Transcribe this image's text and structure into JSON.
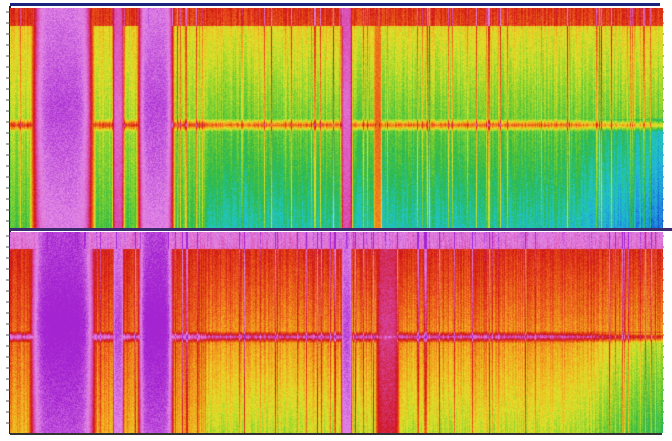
{
  "colors": {
    "frame": "#1a237e",
    "divider": "#3b2a6e",
    "background": "#ffffff"
  },
  "icons": {
    "channel_1": "spectrogram",
    "channel_2": "spectrogram"
  },
  "palette": [
    "#1433c8",
    "#1f8fe0",
    "#21c7c9",
    "#2bb84a",
    "#7fd12e",
    "#e3e12a",
    "#f2a21d",
    "#e8501a",
    "#cf1414",
    "#d94ab0",
    "#e48be6",
    "#a424d1"
  ],
  "channels": [
    {
      "id": "ch1",
      "base_level": 0.38,
      "horizontal_band_at": 0.53,
      "bursts": [
        {
          "start": 0.025,
          "end": 0.135,
          "level": 0.95
        },
        {
          "start": 0.155,
          "end": 0.175,
          "level": 0.85
        },
        {
          "start": 0.19,
          "end": 0.255,
          "level": 0.95
        },
        {
          "start": 0.505,
          "end": 0.525,
          "level": 0.85
        },
        {
          "start": 0.555,
          "end": 0.57,
          "level": 0.6
        }
      ]
    },
    {
      "id": "ch2",
      "base_level": 0.6,
      "horizontal_band_at": 0.52,
      "bursts": [
        {
          "start": 0.02,
          "end": 0.14,
          "level": 1.0
        },
        {
          "start": 0.155,
          "end": 0.175,
          "level": 0.95
        },
        {
          "start": 0.19,
          "end": 0.255,
          "level": 1.0
        },
        {
          "start": 0.505,
          "end": 0.525,
          "level": 0.95
        },
        {
          "start": 0.555,
          "end": 0.6,
          "level": 0.78
        }
      ]
    }
  ]
}
